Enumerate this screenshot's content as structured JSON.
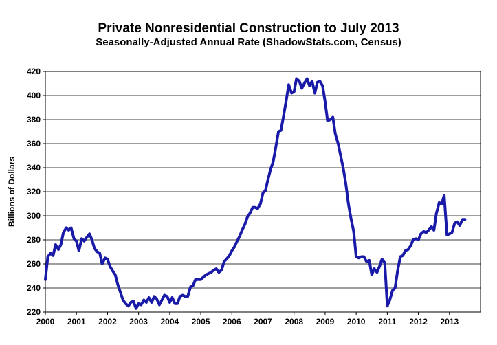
{
  "chart_data": {
    "type": "line",
    "title": "Private Nonresidential Construction to July 2013",
    "subtitle": "Seasonally-Adjusted Annual Rate (ShadowStats.com, Census)",
    "xlabel": "",
    "ylabel": "Billions of Dollars",
    "ylim": [
      220,
      420
    ],
    "yticks": [
      220,
      240,
      260,
      280,
      300,
      320,
      340,
      360,
      380,
      400,
      420
    ],
    "xlim": [
      2000,
      2014
    ],
    "xticks": [
      "2000",
      "2001",
      "2002",
      "2003",
      "2004",
      "2005",
      "2006",
      "2007",
      "2008",
      "2009",
      "2010",
      "2011",
      "2012",
      "2013"
    ],
    "grid": "horizontal",
    "line_color": "#1a1aa8",
    "series": [
      {
        "x": [
          2000.0,
          2000.08,
          2000.17,
          2000.25,
          2000.33,
          2000.42,
          2000.5,
          2000.58,
          2000.67,
          2000.75,
          2000.83,
          2000.92,
          2001.0,
          2001.08,
          2001.17,
          2001.25,
          2001.33,
          2001.42,
          2001.5,
          2001.58,
          2001.67,
          2001.75,
          2001.83,
          2001.92,
          2002.0,
          2002.08,
          2002.17,
          2002.25,
          2002.33,
          2002.42,
          2002.5,
          2002.58,
          2002.67,
          2002.75,
          2002.83,
          2002.92,
          2003.0,
          2003.08,
          2003.17,
          2003.25,
          2003.33,
          2003.42,
          2003.5,
          2003.58,
          2003.67,
          2003.75,
          2003.83,
          2003.92,
          2004.0,
          2004.08,
          2004.17,
          2004.25,
          2004.33,
          2004.42,
          2004.5,
          2004.58,
          2004.67,
          2004.75,
          2004.83,
          2004.92,
          2005.0,
          2005.08,
          2005.17,
          2005.25,
          2005.33,
          2005.42,
          2005.5,
          2005.58,
          2005.67,
          2005.75,
          2005.83,
          2005.92,
          2006.0,
          2006.08,
          2006.17,
          2006.25,
          2006.33,
          2006.42,
          2006.5,
          2006.58,
          2006.67,
          2006.75,
          2006.83,
          2006.92,
          2007.0,
          2007.08,
          2007.17,
          2007.25,
          2007.33,
          2007.42,
          2007.5,
          2007.58,
          2007.67,
          2007.75,
          2007.83,
          2007.92,
          2008.0,
          2008.08,
          2008.17,
          2008.25,
          2008.33,
          2008.42,
          2008.5,
          2008.58,
          2008.67,
          2008.75,
          2008.83,
          2008.92,
          2009.0,
          2009.08,
          2009.17,
          2009.25,
          2009.33,
          2009.42,
          2009.5,
          2009.58,
          2009.67,
          2009.75,
          2009.83,
          2009.92,
          2010.0,
          2010.08,
          2010.17,
          2010.25,
          2010.33,
          2010.42,
          2010.5,
          2010.58,
          2010.67,
          2010.75,
          2010.83,
          2010.92,
          2011.0,
          2011.08,
          2011.17,
          2011.25,
          2011.33,
          2011.42,
          2011.5,
          2011.58,
          2011.67,
          2011.75,
          2011.83,
          2011.92,
          2012.0,
          2012.08,
          2012.17,
          2012.25,
          2012.33,
          2012.42,
          2012.5,
          2012.58,
          2012.67,
          2012.75,
          2012.83,
          2012.92,
          2013.0,
          2013.08,
          2013.17,
          2013.25,
          2013.33,
          2013.42,
          2013.5
        ],
        "values": [
          247,
          266,
          269,
          267,
          276,
          272,
          276,
          286,
          290,
          288,
          290,
          281,
          279,
          271,
          281,
          279,
          282,
          285,
          280,
          273,
          270,
          269,
          260,
          265,
          264,
          258,
          254,
          251,
          243,
          236,
          230,
          227,
          225,
          228,
          229,
          223,
          227,
          226,
          230,
          228,
          232,
          228,
          233,
          231,
          226,
          230,
          234,
          233,
          228,
          232,
          227,
          227,
          233,
          234,
          233,
          233,
          241,
          242,
          247,
          247,
          247,
          249,
          251,
          252,
          253,
          255,
          256,
          253,
          255,
          262,
          264,
          267,
          271,
          274,
          279,
          283,
          288,
          293,
          299,
          302,
          307,
          307,
          306,
          310,
          319,
          321,
          331,
          339,
          345,
          358,
          370,
          371,
          384,
          396,
          409,
          402,
          403,
          414,
          412,
          406,
          410,
          414,
          408,
          412,
          402,
          411,
          412,
          408,
          395,
          379,
          380,
          382,
          368,
          360,
          350,
          340,
          326,
          310,
          298,
          287,
          266,
          265,
          266,
          266,
          262,
          263,
          251,
          256,
          253,
          258,
          264,
          261,
          225,
          230,
          238,
          240,
          254,
          266,
          267,
          271,
          272,
          275,
          280,
          281,
          280,
          285,
          287,
          286,
          288,
          291,
          288,
          302,
          311,
          310,
          317,
          284,
          285,
          286,
          294,
          295,
          292,
          297,
          297
        ]
      }
    ]
  }
}
